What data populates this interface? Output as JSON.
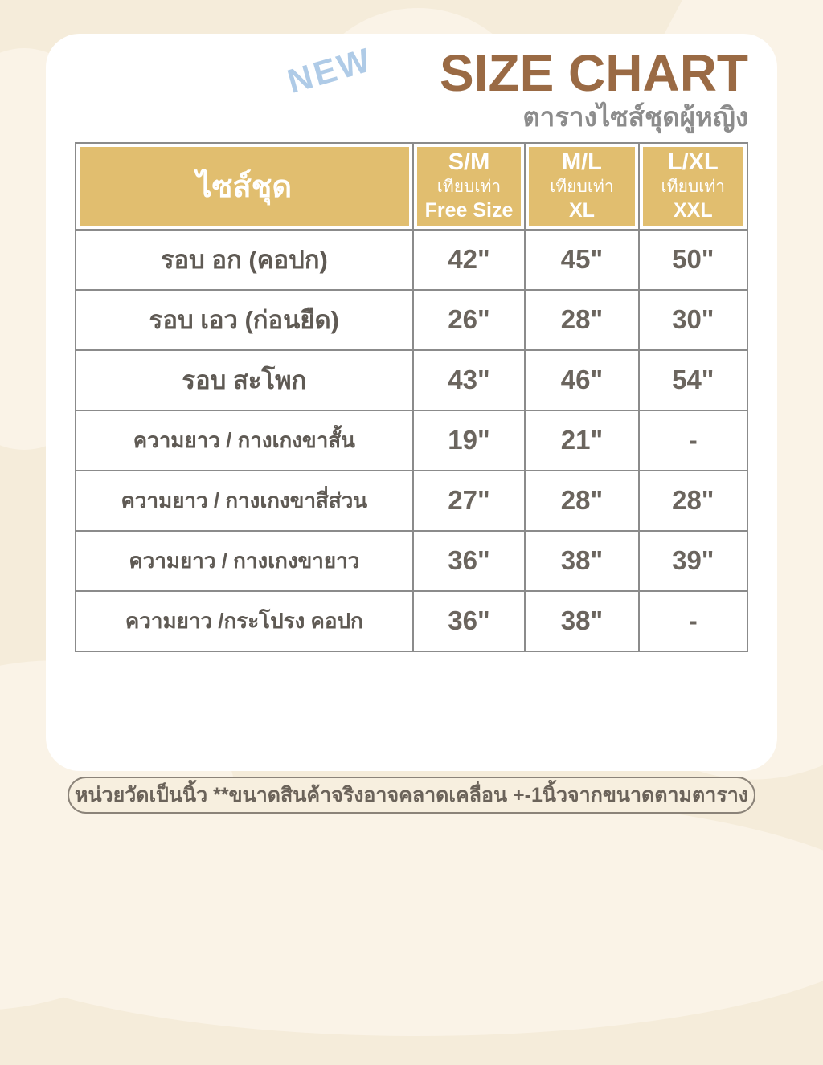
{
  "palette": {
    "background": "#F5ECDA",
    "blob": "#FAF3E7",
    "card": "#FFFFFF",
    "header_gold": "#E1BE6F",
    "table_border": "#8B8B8B",
    "title_brown": "#9A6A44",
    "badge_blue": "#AFCBE7",
    "subtitle_gray": "#8C8C8C",
    "label_gray": "#5F5A54",
    "value_gray": "#6B655E"
  },
  "header": {
    "badge": "NEW",
    "title": "SIZE CHART",
    "subtitle": "ตารางไซส์ชุดผู้หญิง"
  },
  "table": {
    "first_column_header": "ไซส์ชุด",
    "columns": [
      {
        "size": "S/M",
        "equivalent_label": "เทียบเท่า",
        "equivalent_size": "Free Size"
      },
      {
        "size": "M/L",
        "equivalent_label": "เทียบเท่า",
        "equivalent_size": "XL"
      },
      {
        "size": "L/XL",
        "equivalent_label": "เทียบเท่า",
        "equivalent_size": "XXL"
      }
    ],
    "rows": [
      {
        "label": "รอบ อก (คอปก)",
        "values": [
          "42\"",
          "45\"",
          "50\""
        ]
      },
      {
        "label": "รอบ เอว (ก่อนยืด)",
        "values": [
          "26\"",
          "28\"",
          "30\""
        ]
      },
      {
        "label": "รอบ สะโพก",
        "values": [
          "43\"",
          "46\"",
          "54\""
        ]
      },
      {
        "label": "ความยาว / กางเกงขาสั้น",
        "values": [
          "19\"",
          "21\"",
          "-"
        ]
      },
      {
        "label": "ความยาว / กางเกงขาสี่ส่วน",
        "values": [
          "27\"",
          "28\"",
          "28\""
        ]
      },
      {
        "label": "ความยาว / กางเกงขายาว",
        "values": [
          "36\"",
          "38\"",
          "39\""
        ]
      },
      {
        "label": "ความยาว /กระโปรง คอปก",
        "values": [
          "36\"",
          "38\"",
          "-"
        ]
      }
    ]
  },
  "footer": {
    "note": "หน่วยวัดเป็นนิ้ว  **ขนาดสินค้าจริงอาจคลาดเคลื่อน +-1นิ้วจากขนาดตามตาราง"
  },
  "chart_data": {
    "type": "table",
    "title": "SIZE CHART",
    "subtitle": "ตารางไซส์ชุดผู้หญิง",
    "columns": [
      "ไซส์ชุด",
      "S/M เทียบเท่า Free Size",
      "M/L เทียบเท่า XL",
      "L/XL เทียบเท่า XXL"
    ],
    "rows": [
      [
        "รอบ อก (คอปก)",
        "42\"",
        "45\"",
        "50\""
      ],
      [
        "รอบ เอว (ก่อนยืด)",
        "26\"",
        "28\"",
        "30\""
      ],
      [
        "รอบ สะโพก",
        "43\"",
        "46\"",
        "54\""
      ],
      [
        "ความยาว / กางเกงขาสั้น",
        "19\"",
        "21\"",
        "-"
      ],
      [
        "ความยาว / กางเกงขาสี่ส่วน",
        "27\"",
        "28\"",
        "28\""
      ],
      [
        "ความยาว / กางเกงขายาว",
        "36\"",
        "38\"",
        "39\""
      ],
      [
        "ความยาว /กระโปรง คอปก",
        "36\"",
        "38\"",
        "-"
      ]
    ],
    "note": "หน่วยวัดเป็นนิ้ว **ขนาดสินค้าจริงอาจคลาดเคลื่อน +-1นิ้วจากขนาดตามตาราง",
    "units": "inches"
  }
}
